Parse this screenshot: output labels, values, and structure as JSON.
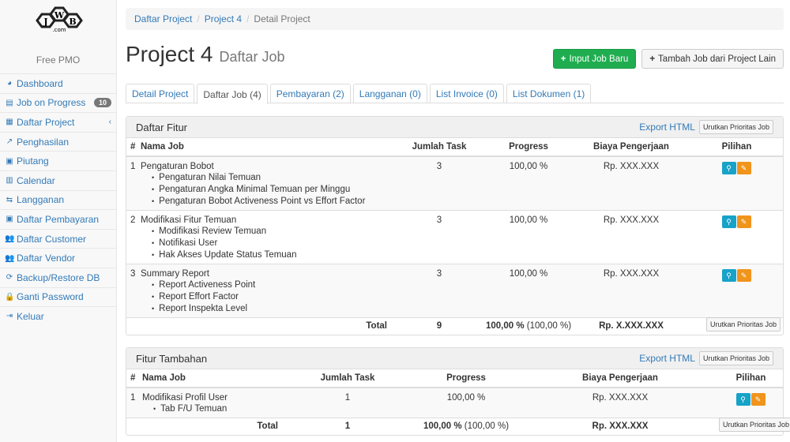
{
  "sidebar": {
    "logo_text": "JWB .com",
    "brand": "Free PMO",
    "items": [
      {
        "label": "Dashboard",
        "icon": "dashboard-icon",
        "glyph": "◕"
      },
      {
        "label": "Job on Progress",
        "icon": "tasks-icon",
        "glyph": "▤",
        "badge": "10"
      },
      {
        "label": "Daftar Project",
        "icon": "table-icon",
        "glyph": "▦"
      },
      {
        "label": "Penghasilan",
        "icon": "line-chart-icon",
        "glyph": "↗"
      },
      {
        "label": "Piutang",
        "icon": "money-icon",
        "glyph": "▣"
      },
      {
        "label": "Calendar",
        "icon": "calendar-icon",
        "glyph": "▥"
      },
      {
        "label": "Langganan",
        "icon": "retweet-icon",
        "glyph": "⇆"
      },
      {
        "label": "Daftar Pembayaran",
        "icon": "money-icon",
        "glyph": "▣"
      },
      {
        "label": "Daftar Customer",
        "icon": "users-icon",
        "glyph": "👥"
      },
      {
        "label": "Daftar Vendor",
        "icon": "users-icon",
        "glyph": "👥"
      },
      {
        "label": "Backup/Restore DB",
        "icon": "refresh-icon",
        "glyph": "⟳"
      },
      {
        "label": "Ganti Password",
        "icon": "lock-icon",
        "glyph": "🔒"
      },
      {
        "label": "Keluar",
        "icon": "sign-out-icon",
        "glyph": "⇥"
      }
    ]
  },
  "breadcrumb": [
    "Daftar Project",
    "Project 4",
    "Detail Project"
  ],
  "header": {
    "title": "Project 4",
    "subtitle": "Daftar Job",
    "btn_new": "Input Job Baru",
    "btn_import": "Tambah Job dari Project Lain"
  },
  "tabs": [
    "Detail Project",
    "Daftar Job (4)",
    "Pembayaran (2)",
    "Langganan (0)",
    "List Invoice (0)",
    "List Dokumen (1)"
  ],
  "fitur": {
    "title": "Daftar Fitur",
    "export": "Export HTML",
    "sort": "Urutkan Prioritas Job",
    "columns": [
      "#",
      "Nama Job",
      "Jumlah Task",
      "Progress",
      "Biaya Pengerjaan",
      "Pilihan"
    ],
    "rows": [
      {
        "no": "1",
        "name": "Pengaturan Bobot",
        "tasks": [
          "Pengaturan Nilai Temuan",
          "Pengaturan Angka Minimal Temuan per Minggu",
          "Pengaturan Bobot Activeness Point vs Effort Factor"
        ],
        "count": "3",
        "progress": "100,00 %",
        "cost": "Rp. XXX.XXX"
      },
      {
        "no": "2",
        "name": "Modifikasi Fitur Temuan",
        "tasks": [
          "Modifikasi Review Temuan",
          "Notifikasi User",
          "Hak Akses Update Status Temuan"
        ],
        "count": "3",
        "progress": "100,00 %",
        "cost": "Rp. XXX.XXX"
      },
      {
        "no": "3",
        "name": "Summary Report",
        "tasks": [
          "Report Activeness Point",
          "Report Effort Factor",
          "Report Inspekta Level"
        ],
        "count": "3",
        "progress": "100,00 %",
        "cost": "Rp. XXX.XXX"
      }
    ],
    "total": {
      "label": "Total",
      "count": "9",
      "progress": "100,00 %",
      "progress_extra": "(100,00 %)",
      "cost": "Rp. X.XXX.XXX"
    }
  },
  "tambahan": {
    "title": "Fitur Tambahan",
    "export": "Export HTML",
    "sort": "Urutkan Prioritas Job",
    "columns": [
      "#",
      "Nama Job",
      "Jumlah Task",
      "Progress",
      "Biaya Pengerjaan",
      "Pilihan"
    ],
    "rows": [
      {
        "no": "1",
        "name": "Modifikasi Profil User",
        "tasks": [
          "Tab F/U Temuan"
        ],
        "count": "1",
        "progress": "100,00 %",
        "cost": "Rp. XXX.XXX"
      }
    ],
    "total": {
      "label": "Total",
      "count": "1",
      "progress": "100,00 %",
      "progress_extra": "(100,00 %)",
      "cost": "Rp. XXX.XXX"
    }
  }
}
